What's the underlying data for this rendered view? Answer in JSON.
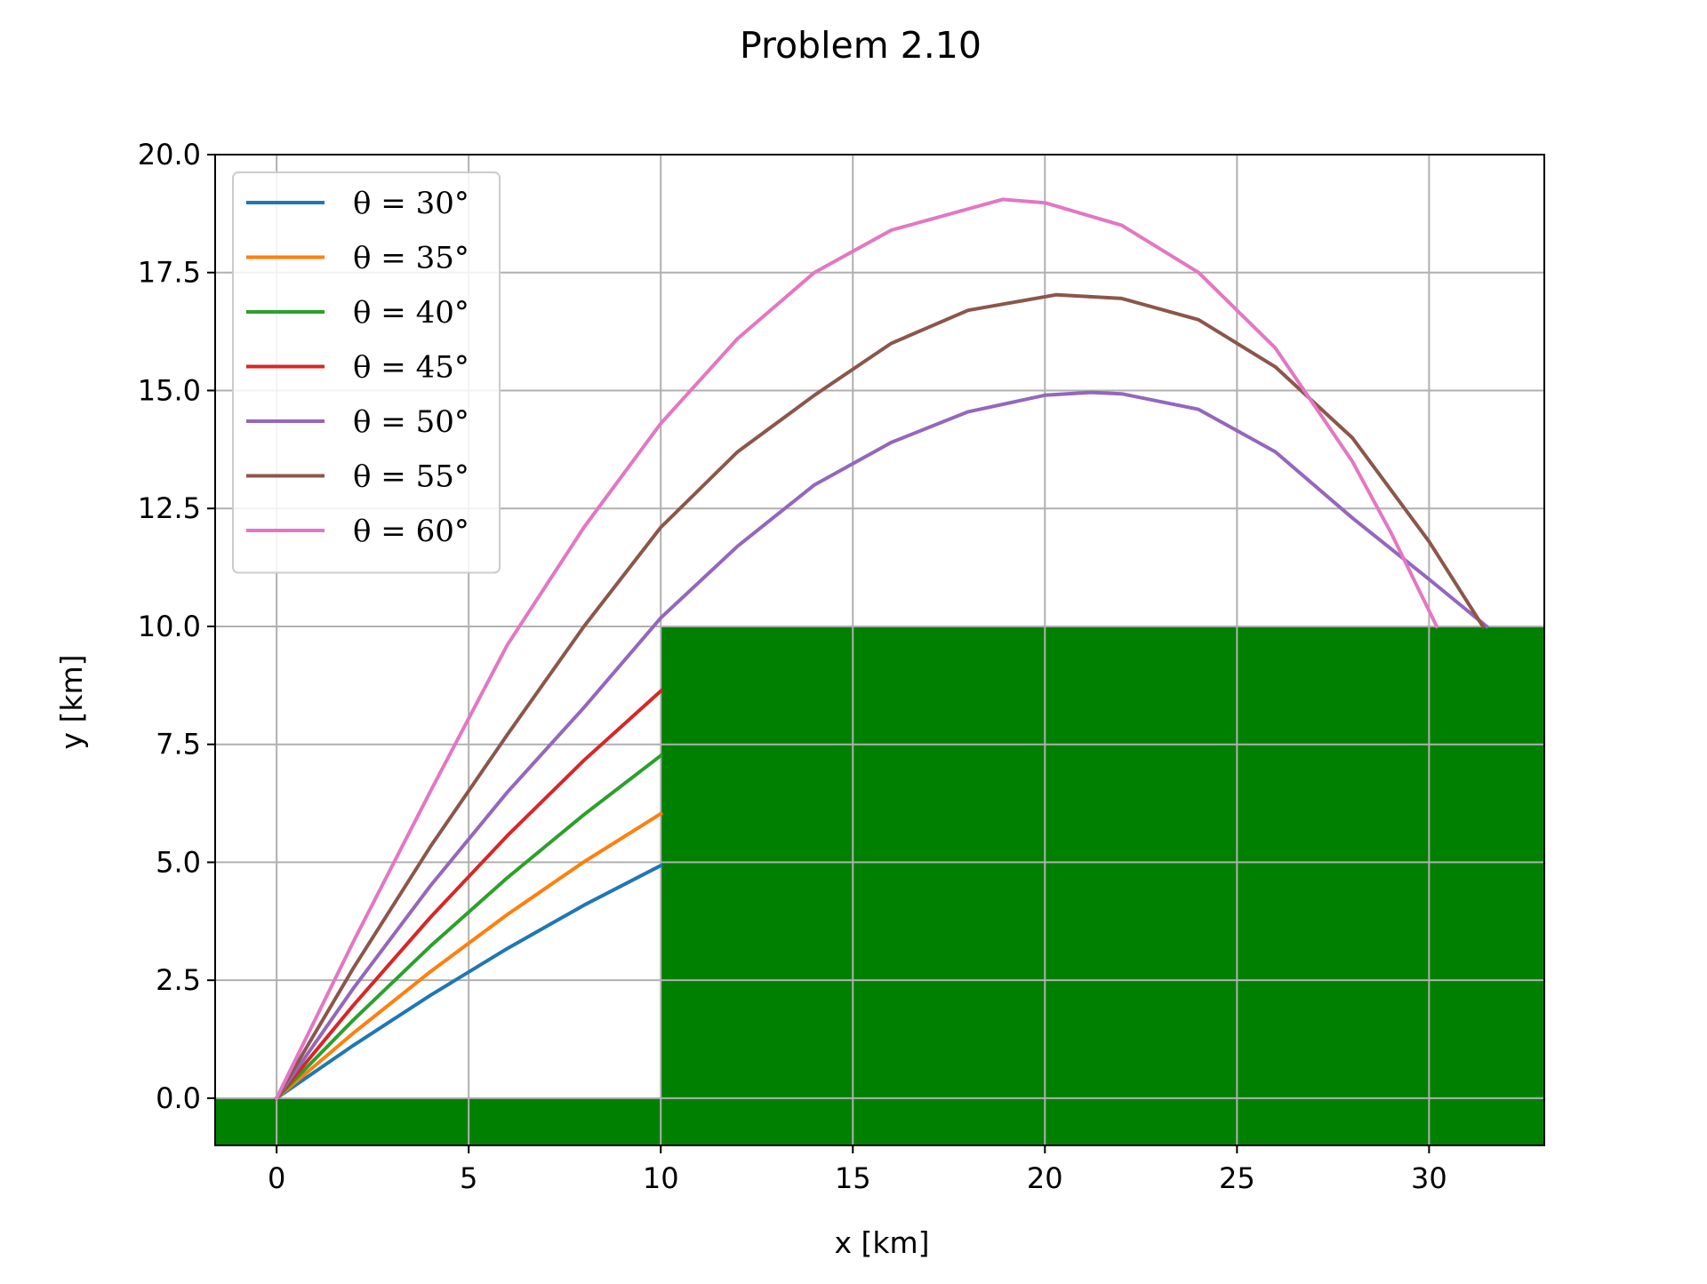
{
  "chart_data": {
    "type": "line",
    "title": "Problem 2.10",
    "xlabel": "x [km]",
    "ylabel": "y [km]",
    "xlim": [
      -1.6,
      33.0
    ],
    "ylim": [
      -1.0,
      20.0
    ],
    "xticks": [
      0,
      5,
      10,
      15,
      20,
      25,
      30
    ],
    "xtick_labels": [
      "0",
      "5",
      "10",
      "15",
      "20",
      "25",
      "30"
    ],
    "yticks": [
      0.0,
      2.5,
      5.0,
      7.5,
      10.0,
      12.5,
      15.0,
      17.5,
      20.0
    ],
    "ytick_labels": [
      "0.0",
      "2.5",
      "5.0",
      "7.5",
      "10.0",
      "12.5",
      "15.0",
      "17.5",
      "20.0"
    ],
    "grid": true,
    "legend_position": "top-left",
    "terrain": {
      "color": "#008000",
      "regions": [
        {
          "x_from": -1.6,
          "x_to": 10.0,
          "height": 0.0
        },
        {
          "x_from": 10.0,
          "x_to": 33.0,
          "height": 10.0
        }
      ]
    },
    "series": [
      {
        "name": "θ = 30°",
        "color": "#1f77b4",
        "x": [
          0,
          2,
          4,
          6,
          8,
          10
        ],
        "y": [
          0,
          1.12,
          2.18,
          3.17,
          4.09,
          4.93
        ]
      },
      {
        "name": "θ = 35°",
        "color": "#ff7f0e",
        "x": [
          0,
          2,
          4,
          6,
          8,
          10
        ],
        "y": [
          0,
          1.38,
          2.68,
          3.89,
          5.01,
          6.03
        ]
      },
      {
        "name": "θ = 40°",
        "color": "#2ca02c",
        "x": [
          0,
          2,
          4,
          6,
          8,
          10
        ],
        "y": [
          0,
          1.66,
          3.22,
          4.67,
          6.01,
          7.26
        ]
      },
      {
        "name": "θ = 45°",
        "color": "#d62728",
        "x": [
          0,
          2,
          4,
          6,
          8,
          10
        ],
        "y": [
          0,
          1.97,
          3.83,
          5.56,
          7.16,
          8.63
        ]
      },
      {
        "name": "θ = 50°",
        "color": "#9467bd",
        "x": [
          0,
          2,
          4,
          6,
          8,
          10,
          12,
          14,
          16,
          18,
          20,
          21.2,
          22,
          24,
          26,
          28,
          30,
          31.5
        ],
        "y": [
          0,
          2.33,
          4.5,
          6.48,
          8.28,
          10.18,
          11.7,
          13.0,
          13.9,
          14.55,
          14.9,
          14.96,
          14.93,
          14.6,
          13.7,
          12.3,
          11.0,
          10.0
        ]
      },
      {
        "name": "θ = 55°",
        "color": "#8c564b",
        "x": [
          0,
          2,
          4,
          6,
          8,
          10,
          12,
          14,
          16,
          18,
          20.3,
          22,
          24,
          26,
          28,
          30,
          31.4
        ],
        "y": [
          0,
          2.76,
          5.33,
          7.7,
          10.0,
          12.1,
          13.7,
          14.9,
          16.0,
          16.7,
          17.03,
          16.95,
          16.5,
          15.5,
          14.0,
          11.8,
          10.0
        ]
      },
      {
        "name": "θ = 60°",
        "color": "#e377c2",
        "x": [
          0,
          2,
          4,
          6,
          8,
          10,
          12,
          14,
          16,
          18.9,
          20,
          22,
          24,
          26,
          28,
          29,
          30.2
        ],
        "y": [
          0,
          3.32,
          6.5,
          9.6,
          12.1,
          14.3,
          16.1,
          17.5,
          18.4,
          19.05,
          18.98,
          18.5,
          17.5,
          15.9,
          13.5,
          12.0,
          10.0
        ]
      }
    ]
  }
}
